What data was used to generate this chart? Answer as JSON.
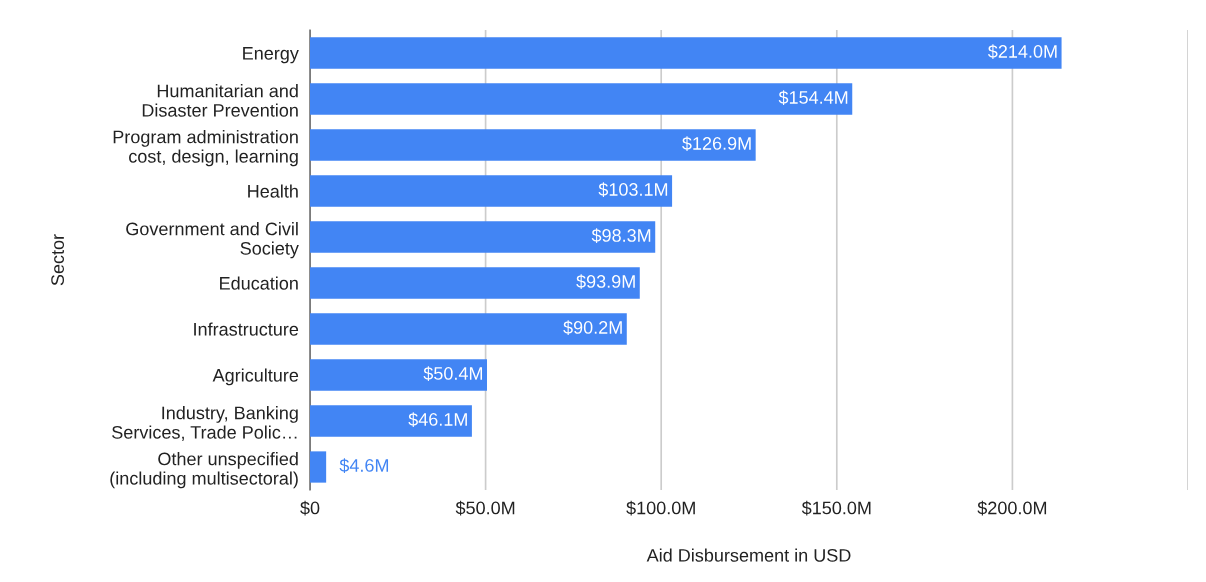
{
  "chart_data": {
    "type": "bar",
    "orientation": "horizontal",
    "xlabel": "Aid Disbursement in USD",
    "ylabel": "Sector",
    "categories": [
      "Energy",
      "Humanitarian and\nDisaster Prevention",
      "Program administration\ncost, design, learning",
      "Health",
      "Government and Civil\nSociety",
      "Education",
      "Infrastructure",
      "Agriculture",
      "Industry, Banking\nServices, Trade Polic…",
      "Other unspecified\n(including multisectoral)"
    ],
    "values": [
      214.0,
      154.4,
      126.9,
      103.1,
      98.3,
      93.9,
      90.2,
      50.4,
      46.1,
      4.6
    ],
    "value_labels": [
      "$214.0M",
      "$154.4M",
      "$126.9M",
      "$103.1M",
      "$98.3M",
      "$93.9M",
      "$90.2M",
      "$50.4M",
      "$46.1M",
      "$4.6M"
    ],
    "color": "#4285f4",
    "xlim": [
      0,
      250
    ],
    "xticks": [
      {
        "value": 0,
        "label": "$0"
      },
      {
        "value": 50,
        "label": "$50.0M"
      },
      {
        "value": 100,
        "label": "$100.0M"
      },
      {
        "value": 150,
        "label": "$150.0M"
      },
      {
        "value": 200,
        "label": "$200.0M"
      },
      {
        "value": 250,
        "label": null
      }
    ],
    "grid": "x"
  }
}
